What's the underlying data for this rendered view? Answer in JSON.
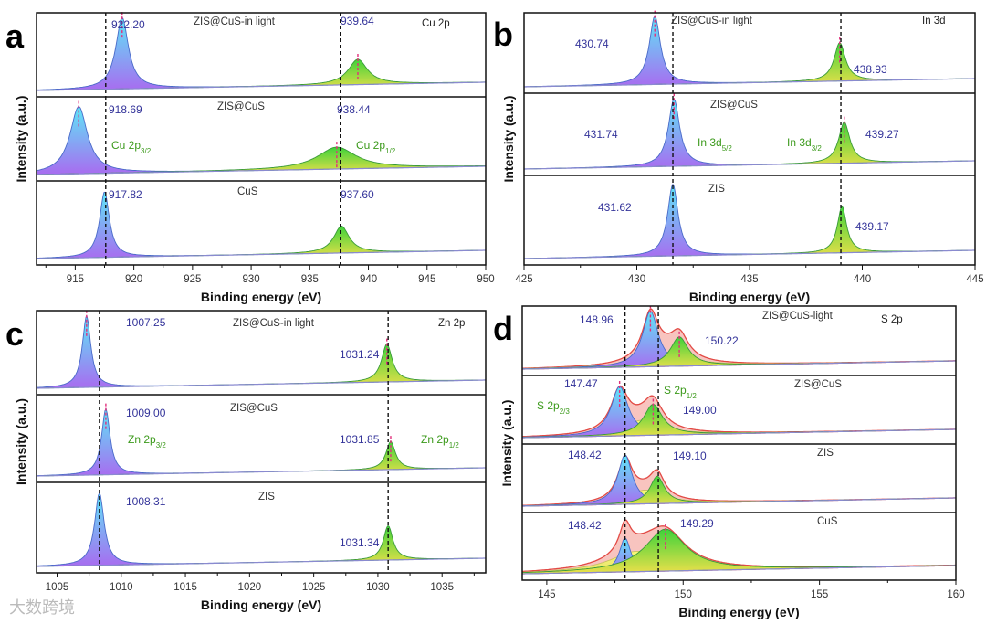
{
  "watermark": "大数跨境",
  "chart_data": [
    {
      "panel": "a",
      "type": "line",
      "title": "Cu 2p",
      "xlabel": "Binding energy (eV)",
      "ylabel": "Intensity (a.u.)",
      "xlim": [
        911.7,
        950
      ],
      "xticks": [
        915,
        920,
        925,
        930,
        935,
        940,
        945,
        950
      ],
      "dashed_lines": [
        917.6,
        937.6
      ],
      "subplots": [
        {
          "name": "ZIS@CuS-in light",
          "peaks": [
            {
              "component": "Cu 2p3/2",
              "center": 919.0,
              "width": 0.65,
              "height": 0.85,
              "color": "blue",
              "marker": true
            },
            {
              "component": "Cu 2p1/2",
              "center": 939.1,
              "width": 1.0,
              "height": 0.3,
              "color": "green",
              "marker": true
            }
          ]
        },
        {
          "name": "ZIS@CuS",
          "peaks": [
            {
              "component": "Cu 2p3/2",
              "center": 915.3,
              "width": 0.9,
              "height": 0.8,
              "color": "blue",
              "marker": true
            },
            {
              "component": "Cu 2p1/2",
              "center": 937.3,
              "width": 2.0,
              "height": 0.26,
              "color": "green",
              "marker": true
            }
          ]
        },
        {
          "name": "CuS",
          "peaks": [
            {
              "component": "Cu 2p3/2",
              "center": 917.5,
              "width": 0.5,
              "height": 0.78,
              "color": "blue",
              "marker": false
            },
            {
              "component": "Cu 2p1/2",
              "center": 937.7,
              "width": 0.8,
              "height": 0.32,
              "color": "green",
              "marker": false
            }
          ]
        }
      ],
      "annotations": [
        {
          "text": "922.20",
          "kind": "val"
        },
        {
          "text": "ZIS@CuS-in light",
          "kind": "sample"
        },
        {
          "text": "939.64",
          "kind": "val"
        },
        {
          "text": "Cu 2p",
          "kind": "title"
        },
        {
          "text": "918.69",
          "kind": "val"
        },
        {
          "text": "ZIS@CuS",
          "kind": "sample"
        },
        {
          "text": "938.44",
          "kind": "val"
        },
        {
          "text": "Cu 2p",
          "sub": "3/2",
          "kind": "comp"
        },
        {
          "text": "Cu 2p",
          "sub": "1/2",
          "kind": "comp"
        },
        {
          "text": "917.82",
          "kind": "val"
        },
        {
          "text": "CuS",
          "kind": "sample"
        },
        {
          "text": "937.60",
          "kind": "val"
        }
      ]
    },
    {
      "panel": "b",
      "type": "line",
      "title": "In 3d",
      "xlabel": "Binding energy (eV)",
      "ylabel": "Intensity (a.u.)",
      "xlim": [
        425,
        445
      ],
      "xticks": [
        425,
        430,
        435,
        440,
        445
      ],
      "dashed_lines": [
        431.6,
        439.05
      ],
      "subplots": [
        {
          "name": "ZIS@CuS-in light",
          "peaks": [
            {
              "component": "In 3d5/2",
              "center": 430.8,
              "width": 0.3,
              "height": 0.85,
              "color": "blue",
              "marker": true
            },
            {
              "component": "In 3d3/2",
              "center": 439.0,
              "width": 0.3,
              "height": 0.48,
              "color": "green",
              "marker": true
            }
          ]
        },
        {
          "name": "ZIS@CuS",
          "peaks": [
            {
              "component": "In 3d5/2",
              "center": 431.65,
              "width": 0.3,
              "height": 0.82,
              "color": "blue",
              "marker": true
            },
            {
              "component": "In 3d3/2",
              "center": 439.2,
              "width": 0.3,
              "height": 0.5,
              "color": "green",
              "marker": true
            }
          ]
        },
        {
          "name": "ZIS",
          "peaks": [
            {
              "component": "In 3d5/2",
              "center": 431.6,
              "width": 0.28,
              "height": 0.8,
              "color": "blue",
              "marker": false
            },
            {
              "component": "In 3d3/2",
              "center": 439.1,
              "width": 0.25,
              "height": 0.52,
              "color": "green",
              "marker": false
            }
          ]
        }
      ],
      "annotations": [
        {
          "text": "430.74",
          "kind": "val"
        },
        {
          "text": "ZIS@CuS-in light",
          "kind": "sample"
        },
        {
          "text": "In 3d",
          "kind": "title"
        },
        {
          "text": "438.93",
          "kind": "val"
        },
        {
          "text": "ZIS@CuS",
          "kind": "sample"
        },
        {
          "text": "431.74",
          "kind": "val"
        },
        {
          "text": "In 3d",
          "sub": "5/2",
          "kind": "comp"
        },
        {
          "text": "In 3d",
          "sub": "3/2",
          "kind": "comp"
        },
        {
          "text": "439.27",
          "kind": "val"
        },
        {
          "text": "ZIS",
          "kind": "sample"
        },
        {
          "text": "431.62",
          "kind": "val"
        },
        {
          "text": "439.17",
          "kind": "val"
        }
      ]
    },
    {
      "panel": "c",
      "type": "line",
      "title": "Zn 2p",
      "xlabel": "Binding energy (eV)",
      "ylabel": "Intensity (a.u.)",
      "xlim": [
        1003.4,
        1038.4
      ],
      "xticks": [
        1005,
        1010,
        1015,
        1020,
        1025,
        1030,
        1035
      ],
      "dashed_lines": [
        1008.3,
        1030.8
      ],
      "subplots": [
        {
          "name": "ZIS@CuS-in light",
          "peaks": [
            {
              "component": "Zn 2p3/2",
              "center": 1007.3,
              "width": 0.4,
              "height": 0.85,
              "color": "blue",
              "marker": true
            },
            {
              "component": "Zn 2p1/2",
              "center": 1030.7,
              "width": 0.5,
              "height": 0.45,
              "color": "green",
              "marker": true
            }
          ]
        },
        {
          "name": "ZIS@CuS",
          "peaks": [
            {
              "component": "Zn 2p3/2",
              "center": 1008.8,
              "width": 0.4,
              "height": 0.75,
              "color": "blue",
              "marker": true
            },
            {
              "component": "Zn 2p1/2",
              "center": 1031.0,
              "width": 0.45,
              "height": 0.32,
              "color": "green",
              "marker": true
            }
          ]
        },
        {
          "name": "ZIS",
          "peaks": [
            {
              "component": "Zn 2p3/2",
              "center": 1008.3,
              "width": 0.45,
              "height": 0.8,
              "color": "blue",
              "marker": false
            },
            {
              "component": "Zn 2p1/2",
              "center": 1030.8,
              "width": 0.45,
              "height": 0.38,
              "color": "green",
              "marker": false
            }
          ]
        }
      ],
      "annotations": [
        {
          "text": "1007.25",
          "kind": "val"
        },
        {
          "text": "ZIS@CuS-in light",
          "kind": "sample"
        },
        {
          "text": "Zn 2p",
          "kind": "title"
        },
        {
          "text": "1031.24",
          "kind": "val"
        },
        {
          "text": "1009.00",
          "kind": "val"
        },
        {
          "text": "ZIS@CuS",
          "kind": "sample"
        },
        {
          "text": "Zn 2p",
          "sub": "3/2",
          "kind": "comp"
        },
        {
          "text": "1031.85",
          "kind": "val"
        },
        {
          "text": "Zn 2p",
          "sub": "1/2",
          "kind": "comp"
        },
        {
          "text": "1008.31",
          "kind": "val"
        },
        {
          "text": "ZIS",
          "kind": "sample"
        },
        {
          "text": "1031.34",
          "kind": "val"
        }
      ]
    },
    {
      "panel": "d",
      "type": "line",
      "title": "S 2p",
      "xlabel": "Binding energy (eV)",
      "ylabel": "Intensity (a.u.)",
      "xlim": [
        144.1,
        160
      ],
      "xticks": [
        145,
        150,
        155,
        160
      ],
      "dashed_lines": [
        147.87,
        149.09
      ],
      "subplots": [
        {
          "name": "ZIS@CuS-light",
          "envelope": true,
          "peaks": [
            {
              "component": "background",
              "center": 149.3,
              "width": 1.0,
              "height": 0.2,
              "color": "yellow",
              "marker": false
            },
            {
              "component": "S 2p3/2",
              "center": 148.8,
              "width": 0.35,
              "height": 0.8,
              "color": "blue",
              "marker": true
            },
            {
              "component": "S 2p1/2",
              "center": 149.86,
              "width": 0.4,
              "height": 0.42,
              "color": "green",
              "marker": true
            }
          ]
        },
        {
          "name": "ZIS@CuS",
          "envelope": true,
          "peaks": [
            {
              "component": "background",
              "center": 148.5,
              "width": 0.9,
              "height": 0.22,
              "color": "yellow",
              "marker": false
            },
            {
              "component": "S 2p3/2",
              "center": 147.67,
              "width": 0.38,
              "height": 0.72,
              "color": "blue",
              "marker": true
            },
            {
              "component": "S 2p1/2",
              "center": 148.9,
              "width": 0.42,
              "height": 0.45,
              "color": "green",
              "marker": true
            }
          ]
        },
        {
          "name": "ZIS",
          "envelope": true,
          "peaks": [
            {
              "component": "background",
              "center": 148.6,
              "width": 0.8,
              "height": 0.2,
              "color": "yellow",
              "marker": false
            },
            {
              "component": "S 2p3/2",
              "center": 147.87,
              "width": 0.32,
              "height": 0.72,
              "color": "blue",
              "marker": false
            },
            {
              "component": "S 2p1/2",
              "center": 149.05,
              "width": 0.32,
              "height": 0.4,
              "color": "green",
              "marker": false
            }
          ]
        },
        {
          "name": "CuS",
          "envelope": true,
          "peaks": [
            {
              "component": "background",
              "center": 148.3,
              "width": 1.2,
              "height": 0.3,
              "color": "yellow",
              "marker": false
            },
            {
              "component": "S 2p3/2",
              "center": 147.87,
              "width": 0.25,
              "height": 0.5,
              "color": "blue",
              "marker": false
            },
            {
              "component": "S 2p1/2",
              "center": 149.35,
              "width": 0.9,
              "height": 0.62,
              "color": "green",
              "marker": true
            }
          ]
        }
      ],
      "annotations": [
        {
          "text": "148.96",
          "kind": "val"
        },
        {
          "text": "ZIS@CuS-light",
          "kind": "sample"
        },
        {
          "text": "S 2p",
          "kind": "title"
        },
        {
          "text": "150.22",
          "kind": "val"
        },
        {
          "text": "147.47",
          "kind": "val"
        },
        {
          "text": "ZIS@CuS",
          "kind": "sample"
        },
        {
          "text": "S 2p",
          "sub": "1/2",
          "kind": "comp"
        },
        {
          "text": "S 2p",
          "sub": "2/3",
          "kind": "comp"
        },
        {
          "text": "149.00",
          "kind": "val"
        },
        {
          "text": "148.42",
          "kind": "val"
        },
        {
          "text": "ZIS",
          "kind": "sample"
        },
        {
          "text": "149.10",
          "kind": "val"
        },
        {
          "text": "148.42",
          "kind": "val"
        },
        {
          "text": "CuS",
          "kind": "sample"
        },
        {
          "text": "149.29",
          "kind": "val"
        }
      ]
    }
  ]
}
